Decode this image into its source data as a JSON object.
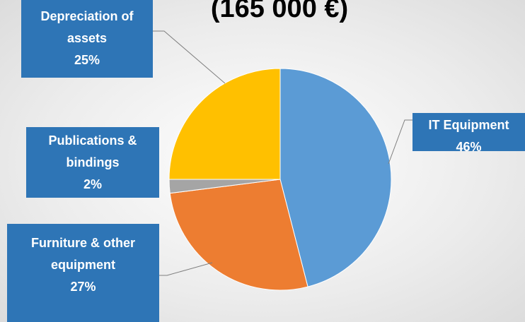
{
  "chart_data": {
    "type": "pie",
    "title": "(165 000 €)",
    "categories": [
      "IT Equipment",
      "Furniture & other equipment",
      "Publications & bindings",
      "Depreciation of assets"
    ],
    "values": [
      46,
      27,
      2,
      25
    ],
    "value_labels": [
      "46%",
      "27%",
      "2%",
      "25%"
    ],
    "colors": [
      "#5b9bd5",
      "#ed7d31",
      "#a5a5a5",
      "#ffc000"
    ]
  }
}
